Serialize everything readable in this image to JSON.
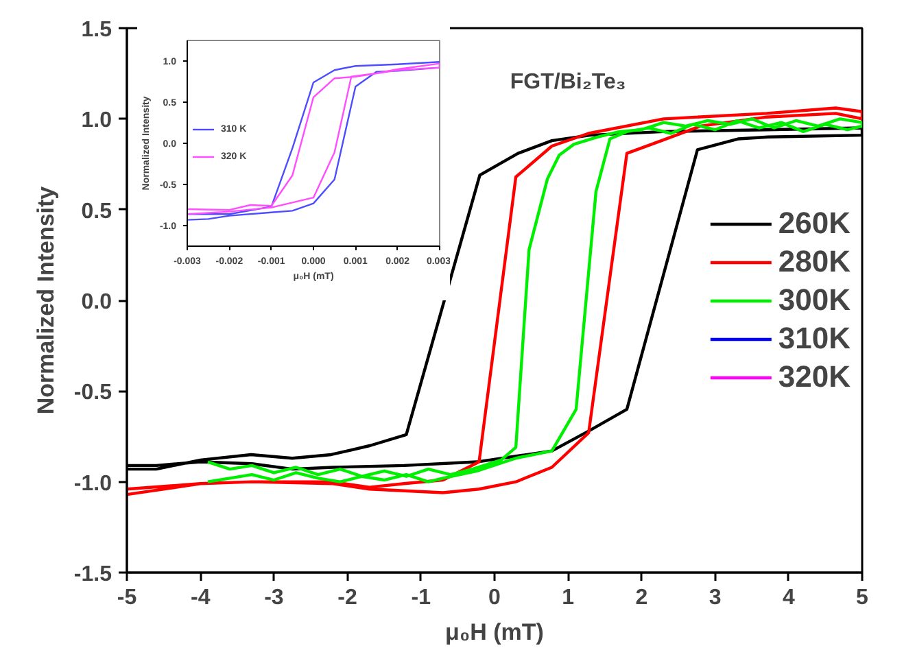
{
  "chart_data": [
    {
      "type": "line",
      "xlabel": "μ₀H (mT)",
      "ylabel": "Normalized Intensity",
      "annotations": [
        "FGT/Bi₂Te₃"
      ],
      "xlim": [
        -5,
        5
      ],
      "xticks": [
        -5,
        -4,
        -3,
        -2,
        -1,
        0,
        1,
        2,
        3,
        4,
        5
      ],
      "ylim": [
        -1.5,
        1.5
      ],
      "yticks": [
        -1.5,
        {
          "value": -1,
          "label": "-1.0"
        },
        -0.5,
        {
          "value": 0,
          "label": "0.0"
        },
        0.5,
        {
          "value": 1,
          "label": "1.0"
        },
        1.5
      ],
      "grid": false,
      "legend": "right",
      "marker": "none",
      "line_style": "solid",
      "series": [
        {
          "name": "260K",
          "color": "#000000",
          "x": [
            -5,
            -4.6,
            -4,
            -3.3,
            -2.75,
            -2.2,
            -1.23,
            -0.24,
            0.78,
            1.28,
            1.8,
            2.76,
            3.32,
            3.72,
            5,
            5,
            3.7,
            2.3,
            1.3,
            0.78,
            0.32,
            -0.2,
            -1.2,
            -1.69,
            -2.22,
            -2.75,
            -3.31,
            -4.0,
            -4.6,
            -5
          ],
          "values": [
            -0.91,
            -0.91,
            -0.89,
            -0.9,
            -0.93,
            -0.92,
            -0.91,
            -0.89,
            -0.83,
            -0.72,
            -0.6,
            0.83,
            0.89,
            0.9,
            0.91,
            0.95,
            0.94,
            0.93,
            0.91,
            0.88,
            0.81,
            0.69,
            -0.74,
            -0.8,
            -0.85,
            -0.87,
            -0.85,
            -0.88,
            -0.93,
            -0.93
          ]
        },
        {
          "name": "280K",
          "color": "#ff0000",
          "x": [
            -5,
            -4,
            -3.3,
            -2.2,
            -1.7,
            -0.7,
            -0.21,
            0.29,
            0.78,
            1.28,
            1.8,
            2.27,
            2.8,
            3.7,
            4.64,
            5,
            5,
            4.64,
            3.7,
            2.3,
            1.28,
            0.78,
            0.29,
            -0.21,
            -0.7,
            -1.23,
            -1.7,
            -2.22,
            -3.3,
            -4,
            -5
          ],
          "values": [
            -1.04,
            -1.01,
            -1.0,
            -1.01,
            -1.04,
            -1.06,
            -1.04,
            -1.0,
            -0.92,
            -0.73,
            0.81,
            0.88,
            0.96,
            1.01,
            1.03,
            1.0,
            1.04,
            1.06,
            1.03,
            1.0,
            0.92,
            0.85,
            0.68,
            -0.89,
            -0.99,
            -1.01,
            -1.03,
            -1.0,
            -1.0,
            -1.01,
            -1.07
          ]
        },
        {
          "name": "300K",
          "color": "#00ee00",
          "x": [
            -3.9,
            -3.6,
            -3.3,
            -3.0,
            -2.7,
            -2.4,
            -2.1,
            -1.8,
            -1.5,
            -1.2,
            -0.9,
            -0.7,
            -0.24,
            0.29,
            0.78,
            1.11,
            1.38,
            1.57,
            1.8,
            2.1,
            2.4,
            2.7,
            3.0,
            3.3,
            3.6,
            3.9,
            4.2,
            4.5,
            4.8,
            5,
            5,
            4.7,
            4.4,
            4.1,
            3.8,
            3.5,
            3.2,
            2.9,
            2.6,
            2.3,
            2.0,
            1.7,
            1.4,
            1.08,
            0.88,
            0.72,
            0.47,
            0.29,
            0.09,
            -0.3,
            -0.6,
            -0.9,
            -1.2,
            -1.5,
            -1.8,
            -2.1,
            -2.4,
            -2.7,
            -3.0,
            -3.3,
            -3.6,
            -3.9
          ],
          "values": [
            -1.0,
            -0.98,
            -0.96,
            -0.99,
            -0.95,
            -0.98,
            -1.0,
            -0.97,
            -0.99,
            -0.96,
            -1.0,
            -0.98,
            -0.94,
            -0.87,
            -0.83,
            -0.6,
            0.6,
            0.89,
            0.93,
            0.95,
            0.92,
            0.97,
            0.94,
            0.99,
            0.95,
            0.98,
            0.93,
            0.97,
            0.94,
            0.96,
            0.98,
            1.0,
            0.96,
            0.99,
            0.95,
            1.0,
            0.97,
            0.99,
            0.96,
            0.98,
            0.94,
            0.93,
            0.9,
            0.86,
            0.8,
            0.67,
            0.28,
            -0.81,
            -0.88,
            -0.93,
            -0.96,
            -0.93,
            -0.97,
            -0.94,
            -0.97,
            -0.93,
            -0.96,
            -0.92,
            -0.95,
            -0.91,
            -0.93,
            -0.89
          ]
        },
        {
          "name": "310K",
          "color": "#0000ff"
        },
        {
          "name": "320K",
          "color": "#ff00ff"
        }
      ]
    },
    {
      "type": "line",
      "xlabel": "μ₀H (mT)",
      "ylabel": "Normalized Intensity",
      "xlim": [
        -0.003,
        0.003
      ],
      "xticks": [
        -0.003,
        -0.002,
        -0.001,
        {
          "value": 0,
          "label": "0.000"
        },
        0.001,
        0.002,
        0.003
      ],
      "ylim": [
        -1.25,
        1.25
      ],
      "yticks": [
        {
          "value": -1,
          "label": "-1.0"
        },
        -0.5,
        {
          "value": 0,
          "label": "0.0"
        },
        0.5,
        {
          "value": 1,
          "label": "1.0"
        }
      ],
      "grid": false,
      "legend": "left",
      "marker": "none",
      "line_style": "solid",
      "series": [
        {
          "name": "310 K",
          "color": "#4d4dff",
          "x": [
            -0.003,
            -0.0025,
            -0.002,
            -0.001,
            -0.0005,
            0.0,
            0.0005,
            0.001,
            0.0015,
            0.002,
            0.003,
            0.003,
            0.002,
            0.001,
            0.0005,
            0.0,
            -0.0005,
            -0.001,
            -0.002,
            -0.003
          ],
          "values": [
            -0.93,
            -0.92,
            -0.88,
            -0.84,
            -0.82,
            -0.73,
            -0.44,
            0.69,
            0.87,
            0.88,
            0.92,
            0.99,
            0.96,
            0.94,
            0.89,
            0.74,
            -0.06,
            -0.77,
            -0.86,
            -0.86
          ]
        },
        {
          "name": "320 K",
          "color": "#ff4dff",
          "x": [
            -0.003,
            -0.002,
            -0.001,
            -0.0005,
            0.0,
            0.0005,
            0.0009,
            0.0015,
            0.002,
            0.003,
            0.003,
            0.002,
            0.001,
            0.0005,
            0.0,
            -0.0005,
            -0.001,
            -0.0015,
            -0.002,
            -0.003
          ],
          "values": [
            -0.86,
            -0.83,
            -0.78,
            -0.72,
            -0.66,
            -0.11,
            0.81,
            0.85,
            0.9,
            0.97,
            0.92,
            0.89,
            0.81,
            0.79,
            0.56,
            -0.39,
            -0.76,
            -0.75,
            -0.81,
            -0.8
          ]
        }
      ]
    }
  ]
}
